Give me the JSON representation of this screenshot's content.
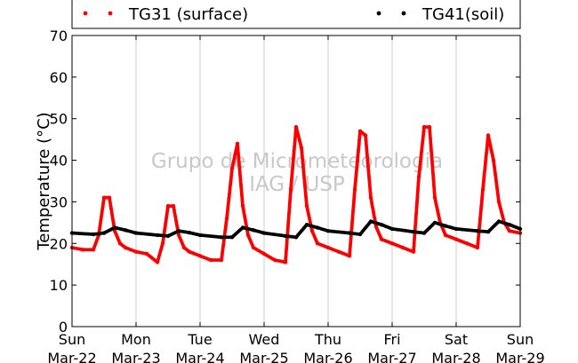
{
  "chart_data": {
    "type": "scatter",
    "title": "",
    "xlabel": "",
    "ylabel": "Temperature (°C)",
    "xlim": [
      "2015-03-22 00:00",
      "2015-03-29 00:00"
    ],
    "ylim": [
      0,
      70
    ],
    "yticks": [
      0,
      10,
      20,
      30,
      40,
      50,
      60,
      70
    ],
    "grid": "vertical",
    "legend": "top",
    "watermark": [
      "Grupo de Micrometeorologia",
      "IAG / USP"
    ],
    "x_tick_labels": [
      {
        "day": "Sun",
        "date": "Mar-22"
      },
      {
        "day": "Mon",
        "date": "Mar-23"
      },
      {
        "day": "Tue",
        "date": "Mar-24"
      },
      {
        "day": "Wed",
        "date": "Mar-25"
      },
      {
        "day": "Thu",
        "date": "Mar-26"
      },
      {
        "day": "Fri",
        "date": "Mar-27"
      },
      {
        "day": "Sat",
        "date": "Mar-28"
      },
      {
        "day": "Sun",
        "date": "Mar-29"
      }
    ],
    "series": [
      {
        "name": "TG31 (surface)",
        "color": "#ff0000",
        "x": [
          "03-22 00:00",
          "03-22 04:00",
          "03-22 08:00",
          "03-22 10:00",
          "03-22 12:00",
          "03-22 14:00",
          "03-22 16:00",
          "03-22 18:00",
          "03-22 20:00",
          "03-23 00:00",
          "03-23 04:00",
          "03-23 08:00",
          "03-23 10:00",
          "03-23 12:00",
          "03-23 14:00",
          "03-23 16:00",
          "03-23 18:00",
          "03-23 20:00",
          "03-24 00:00",
          "03-24 04:00",
          "03-24 08:00",
          "03-24 10:00",
          "03-24 12:00",
          "03-24 14:00",
          "03-24 16:00",
          "03-24 18:00",
          "03-24 20:00",
          "03-25 00:00",
          "03-25 04:00",
          "03-25 08:00",
          "03-25 10:00",
          "03-25 12:00",
          "03-25 14:00",
          "03-25 16:00",
          "03-25 18:00",
          "03-25 20:00",
          "03-26 00:00",
          "03-26 04:00",
          "03-26 08:00",
          "03-26 10:00",
          "03-26 12:00",
          "03-26 14:00",
          "03-26 16:00",
          "03-26 18:00",
          "03-26 20:00",
          "03-27 00:00",
          "03-27 04:00",
          "03-27 08:00",
          "03-27 10:00",
          "03-27 12:00",
          "03-27 14:00",
          "03-27 16:00",
          "03-27 18:00",
          "03-27 20:00",
          "03-28 00:00",
          "03-28 04:00",
          "03-28 08:00",
          "03-28 10:00",
          "03-28 12:00",
          "03-28 14:00",
          "03-28 16:00",
          "03-28 18:00",
          "03-28 20:00",
          "03-29 00:00"
        ],
        "y": [
          19,
          18.5,
          18.5,
          22,
          31,
          31,
          23,
          20,
          19,
          18,
          17.5,
          15.5,
          20,
          29,
          29,
          22,
          19,
          18,
          17,
          16,
          16,
          26,
          38,
          44,
          29,
          22,
          19,
          17.5,
          16,
          15.5,
          33,
          48,
          43,
          29,
          23,
          20,
          19,
          18,
          17,
          33,
          47,
          46,
          31,
          24,
          21,
          20,
          19,
          18,
          36,
          48,
          48,
          31,
          25,
          22,
          21,
          20,
          19,
          33,
          46,
          40,
          30,
          25,
          23,
          22.5
        ]
      },
      {
        "name": "TG41(soil)",
        "color": "#000000",
        "x": [
          "03-22 00:00",
          "03-22 08:00",
          "03-22 12:00",
          "03-22 16:00",
          "03-22 20:00",
          "03-23 00:00",
          "03-23 08:00",
          "03-23 12:00",
          "03-23 16:00",
          "03-23 20:00",
          "03-24 00:00",
          "03-24 08:00",
          "03-24 12:00",
          "03-24 16:00",
          "03-24 20:00",
          "03-25 00:00",
          "03-25 08:00",
          "03-25 12:00",
          "03-25 16:00",
          "03-25 20:00",
          "03-26 00:00",
          "03-26 08:00",
          "03-26 12:00",
          "03-26 16:00",
          "03-26 20:00",
          "03-27 00:00",
          "03-27 08:00",
          "03-27 12:00",
          "03-27 16:00",
          "03-27 20:00",
          "03-28 00:00",
          "03-28 08:00",
          "03-28 12:00",
          "03-28 16:00",
          "03-28 20:00",
          "03-29 00:00"
        ],
        "y": [
          22.5,
          22.2,
          22.5,
          23.8,
          23.2,
          22.5,
          22,
          21.8,
          23,
          22.6,
          22,
          21.5,
          21.5,
          23.8,
          23.2,
          22.5,
          21.8,
          21.5,
          24.5,
          23.8,
          23,
          22.5,
          22.2,
          25.3,
          24.5,
          23.5,
          22.8,
          22.5,
          25,
          24.2,
          23.5,
          23,
          22.8,
          25.3,
          24.5,
          23.5
        ]
      }
    ]
  }
}
